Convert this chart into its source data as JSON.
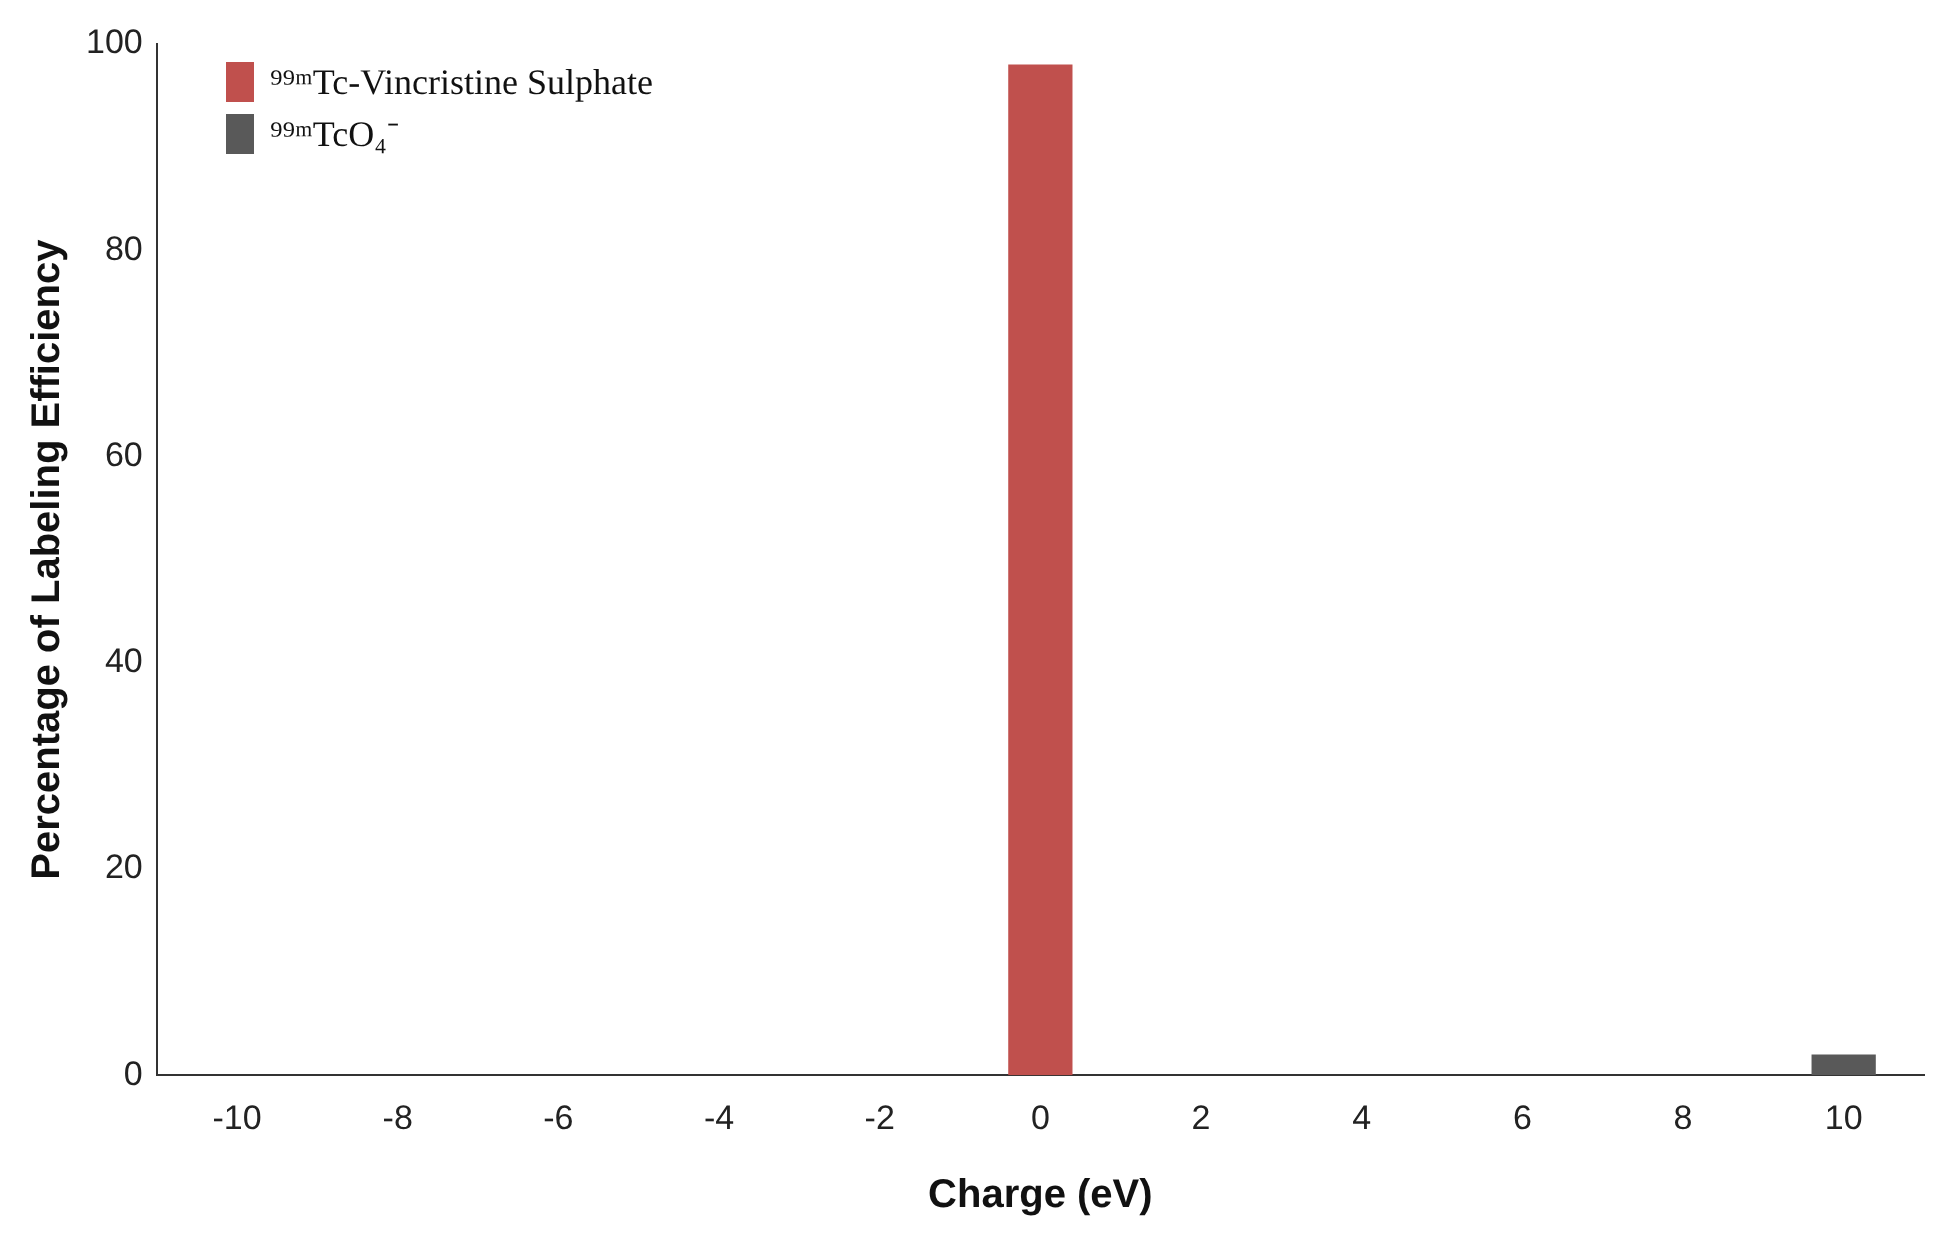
{
  "chart_data": {
    "type": "bar",
    "xlabel": "Charge (eV)",
    "ylabel": "Percentage of Labeling Efficiency",
    "categories": [
      "-10",
      "-8",
      "-6",
      "-4",
      "-2",
      "0",
      "2",
      "4",
      "6",
      "8",
      "10"
    ],
    "series": [
      {
        "name": "⁹⁹ᵐTc-Vincristine Sulphate",
        "color": "#c0504d",
        "values": [
          null,
          null,
          null,
          null,
          null,
          98,
          null,
          null,
          null,
          null,
          null
        ]
      },
      {
        "name": "⁹⁹ᵐTcO₄⁻",
        "color": "#595959",
        "values": [
          null,
          null,
          null,
          null,
          null,
          null,
          null,
          null,
          null,
          null,
          2
        ]
      }
    ],
    "ylim": [
      0,
      100
    ],
    "yticks": [
      0,
      20,
      40,
      60,
      80,
      100
    ],
    "grid": false,
    "legend": "top left"
  }
}
